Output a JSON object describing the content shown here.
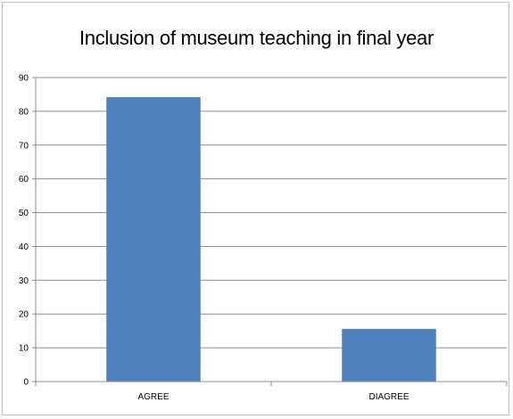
{
  "chart_data": {
    "type": "bar",
    "title": "Inclusion of museum teaching in final  year",
    "categories": [
      "AGREE",
      "DIAGREE"
    ],
    "values": [
      84.2,
      15.6
    ],
    "ylim": [
      0,
      90
    ],
    "yticks": [
      0,
      10,
      20,
      30,
      40,
      50,
      60,
      70,
      80,
      90
    ],
    "grid": true,
    "legend": "none",
    "bar_color": "#4f81bd",
    "grid_color": "#8c8c8c"
  }
}
